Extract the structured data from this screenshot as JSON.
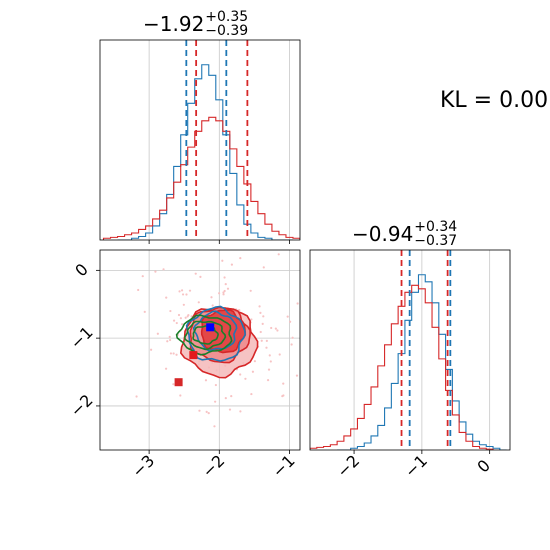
{
  "titles": {
    "p1": {
      "value": "−1.92",
      "plus": "+0.35",
      "minus": "−0.39"
    },
    "p2": {
      "value": "−0.94",
      "plus": "+0.34",
      "minus": "−0.37"
    }
  },
  "kl_text": "KL = 0.00",
  "chart_data": [
    {
      "type": "histogram",
      "panel": "marginal-param-1",
      "xlim": [
        -3.7,
        -0.85
      ],
      "grid": true,
      "series": [
        {
          "color": "#1f77b4",
          "x": [
            -3.4,
            -3.3,
            -3.2,
            -3.1,
            -3.0,
            -2.9,
            -2.8,
            -2.7,
            -2.6,
            -2.5,
            -2.4,
            -2.3,
            -2.2,
            -2.1,
            -2.0,
            -1.9,
            -1.8,
            -1.7,
            -1.6,
            -1.5,
            -1.4,
            -1.3,
            -1.2,
            -1.1,
            -1.0
          ],
          "y": [
            0,
            0,
            0.01,
            0.02,
            0.04,
            0.08,
            0.15,
            0.26,
            0.42,
            0.6,
            0.78,
            0.92,
            1.0,
            0.94,
            0.8,
            0.6,
            0.38,
            0.2,
            0.09,
            0.04,
            0.015,
            0.01,
            0,
            0,
            0
          ]
        },
        {
          "color": "#d62728",
          "x": [
            -3.6,
            -3.5,
            -3.4,
            -3.3,
            -3.2,
            -3.1,
            -3.0,
            -2.9,
            -2.8,
            -2.7,
            -2.6,
            -2.5,
            -2.4,
            -2.3,
            -2.2,
            -2.1,
            -2.0,
            -1.9,
            -1.8,
            -1.7,
            -1.6,
            -1.5,
            -1.4,
            -1.3,
            -1.2,
            -1.1,
            -1.0,
            -0.9
          ],
          "y": [
            0.01,
            0.015,
            0.02,
            0.03,
            0.04,
            0.06,
            0.08,
            0.12,
            0.17,
            0.24,
            0.33,
            0.43,
            0.53,
            0.62,
            0.68,
            0.7,
            0.68,
            0.62,
            0.52,
            0.42,
            0.32,
            0.22,
            0.15,
            0.09,
            0.05,
            0.03,
            0.015,
            0.01
          ]
        }
      ],
      "quantiles": [
        {
          "color": "#1f77b4",
          "values": [
            -2.47,
            -1.9
          ]
        },
        {
          "color": "#d62728",
          "values": [
            -2.33,
            -1.6
          ]
        }
      ]
    },
    {
      "type": "histogram",
      "panel": "marginal-param-2",
      "xlim": [
        -2.65,
        0.3
      ],
      "xticks": [
        -2,
        -1,
        0
      ],
      "xticklabels": [
        "−2",
        "−1",
        "0"
      ],
      "grid": true,
      "series": [
        {
          "color": "#1f77b4",
          "x": [
            -2.2,
            -2.1,
            -2.0,
            -1.9,
            -1.8,
            -1.7,
            -1.6,
            -1.5,
            -1.4,
            -1.3,
            -1.2,
            -1.1,
            -1.0,
            -0.9,
            -0.8,
            -0.7,
            -0.6,
            -0.5,
            -0.4,
            -0.3,
            -0.2,
            -0.1,
            0.0,
            0.1,
            0.2
          ],
          "y": [
            0,
            0,
            0.01,
            0.02,
            0.04,
            0.08,
            0.14,
            0.24,
            0.38,
            0.55,
            0.74,
            0.9,
            1.0,
            0.96,
            0.84,
            0.66,
            0.46,
            0.28,
            0.16,
            0.09,
            0.05,
            0.03,
            0.02,
            0.01,
            0
          ]
        },
        {
          "color": "#d62728",
          "x": [
            -2.6,
            -2.5,
            -2.4,
            -2.3,
            -2.2,
            -2.1,
            -2.0,
            -1.9,
            -1.8,
            -1.7,
            -1.6,
            -1.5,
            -1.4,
            -1.3,
            -1.2,
            -1.1,
            -1.0,
            -0.9,
            -0.8,
            -0.7,
            -0.6,
            -0.5,
            -0.4,
            -0.3,
            -0.2,
            -0.1,
            0.0
          ],
          "y": [
            0.01,
            0.015,
            0.02,
            0.03,
            0.05,
            0.08,
            0.12,
            0.18,
            0.26,
            0.36,
            0.48,
            0.6,
            0.72,
            0.82,
            0.9,
            0.94,
            0.92,
            0.84,
            0.7,
            0.52,
            0.34,
            0.2,
            0.1,
            0.05,
            0.02,
            0.01,
            0.005
          ]
        }
      ],
      "quantiles": [
        {
          "color": "#1f77b4",
          "values": [
            -1.18,
            -0.58
          ]
        },
        {
          "color": "#d62728",
          "values": [
            -1.3,
            -0.62
          ]
        }
      ]
    },
    {
      "type": "scatter",
      "panel": "joint-density",
      "xlim": [
        -3.7,
        -0.85
      ],
      "ylim": [
        -2.65,
        0.3
      ],
      "xticks": [
        -3,
        -2,
        -1
      ],
      "xticklabels": [
        "−3",
        "−2",
        "−1"
      ],
      "yticks": [
        0,
        -1,
        -2
      ],
      "yticklabels": [
        "0",
        "−1",
        "−2"
      ],
      "grid": true,
      "contours": [
        {
          "color": "#d62728",
          "fill": "#f4b8b9",
          "center": [
            -2.0,
            -1.05
          ],
          "rx": 1.05,
          "ry": 1.0
        },
        {
          "color": "#d62728",
          "fill": "#ee8a8b",
          "center": [
            -2.0,
            -0.95
          ],
          "rx": 0.85,
          "ry": 0.8
        },
        {
          "color": "#d62728",
          "fill": "#e03a3b",
          "center": [
            -1.95,
            -0.9
          ],
          "rx": 0.62,
          "ry": 0.62
        },
        {
          "color": "#1f77b4",
          "fill": "none",
          "center": [
            -2.05,
            -0.95
          ],
          "rx": 0.8,
          "ry": 0.78
        },
        {
          "color": "#1f77b4",
          "fill": "none",
          "center": [
            -2.05,
            -0.9
          ],
          "rx": 0.58,
          "ry": 0.55
        },
        {
          "color": "#1a7f2a",
          "fill": "none",
          "center": [
            -2.2,
            -0.95
          ],
          "rx": 0.75,
          "ry": 0.55
        },
        {
          "color": "#1a7f2a",
          "fill": "none",
          "center": [
            -2.2,
            -0.95
          ],
          "rx": 0.55,
          "ry": 0.4
        },
        {
          "color": "#1a7f2a",
          "fill": "none",
          "center": [
            -2.2,
            -0.95
          ],
          "rx": 0.35,
          "ry": 0.26
        }
      ],
      "markers": [
        {
          "color": "#0000ff",
          "x": -2.13,
          "y": -0.84
        },
        {
          "color": "#e41a1c",
          "x": -2.37,
          "y": -1.25
        },
        {
          "color": "#d62728",
          "x": -2.58,
          "y": -1.65
        }
      ]
    }
  ]
}
